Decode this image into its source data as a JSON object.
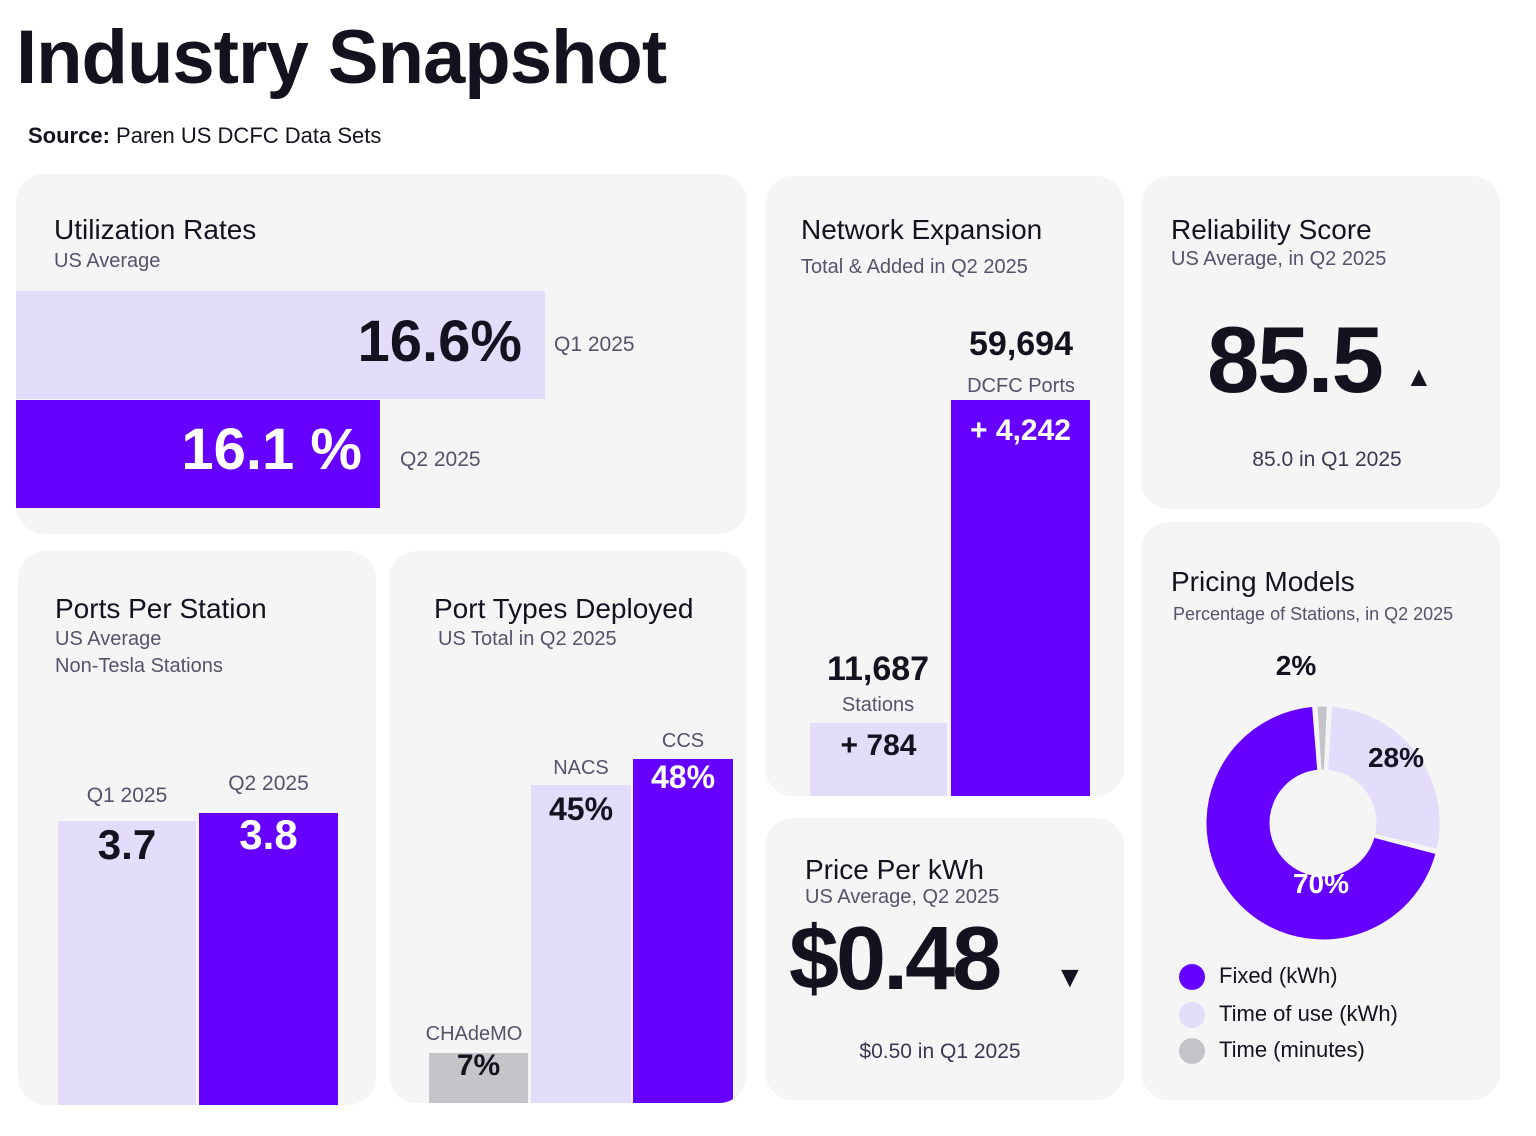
{
  "header": {
    "title": "Industry Snapshot",
    "source_label": "Source:",
    "source_text": "Paren US DCFC Data Sets"
  },
  "colors": {
    "accent": "#6600ff",
    "light": "#e4dcfb",
    "gray": "#c5c5c9",
    "card_bg": "#f5f5f6",
    "text": "#14121f"
  },
  "utilization": {
    "title": "Utilization Rates",
    "subtitle": "US Average",
    "q1_value": "16.6%",
    "q1_label": "Q1 2025",
    "q2_value": "16.1 %",
    "q2_label": "Q2 2025"
  },
  "network": {
    "title": "Network Expansion",
    "subtitle": "Total & Added in Q2 2025",
    "ports_total": "59,694",
    "ports_label": "DCFC Ports",
    "ports_added": "+ 4,242",
    "stations_total": "11,687",
    "stations_label": "Stations",
    "stations_added": "+ 784"
  },
  "reliability": {
    "title": "Reliability Score",
    "subtitle": "US Average, in Q2 2025",
    "value": "85.5",
    "trend_icon": "up-triangle",
    "trend_glyph": "▲",
    "previous": "85.0 in Q1 2025"
  },
  "ports_per_station": {
    "title": "Ports Per Station",
    "subtitle1": "US Average",
    "subtitle2": "Non-Tesla Stations",
    "q1_label": "Q1 2025",
    "q1_value": "3.7",
    "q2_label": "Q2 2025",
    "q2_value": "3.8"
  },
  "port_types": {
    "title": "Port Types Deployed",
    "subtitle": "US Total in Q2 2025",
    "chademo_label": "CHAdeMO",
    "chademo_value": "7%",
    "nacs_label": "NACS",
    "nacs_value": "45%",
    "ccs_label": "CCS",
    "ccs_value": "48%"
  },
  "price": {
    "title": "Price Per kWh",
    "subtitle": "US Average, Q2 2025",
    "value": "$0.48",
    "trend_icon": "down-triangle",
    "trend_glyph": "▼",
    "previous": "$0.50 in Q1 2025"
  },
  "pricing": {
    "title": "Pricing Models",
    "subtitle": "Percentage of Stations, in Q2 2025",
    "slice_time_label": "2%",
    "slice_tou_label": "28%",
    "slice_fixed_label": "70%",
    "legend_fixed": "Fixed (kWh)",
    "legend_tou": "Time of use (kWh)",
    "legend_time": "Time (minutes)"
  },
  "chart_data": [
    {
      "type": "bar",
      "title": "Utilization Rates",
      "subtitle": "US Average",
      "categories": [
        "Q1 2025",
        "Q2 2025"
      ],
      "values": [
        16.6,
        16.1
      ],
      "unit": "%"
    },
    {
      "type": "bar",
      "title": "Network Expansion",
      "subtitle": "Total & Added in Q2 2025",
      "categories": [
        "Stations",
        "DCFC Ports"
      ],
      "values": [
        11687,
        59694
      ],
      "added": [
        784,
        4242
      ]
    },
    {
      "type": "bar",
      "title": "Ports Per Station",
      "subtitle": "US Average Non-Tesla Stations",
      "categories": [
        "Q1 2025",
        "Q2 2025"
      ],
      "values": [
        3.7,
        3.8
      ]
    },
    {
      "type": "bar",
      "title": "Port Types Deployed",
      "subtitle": "US Total in Q2 2025",
      "categories": [
        "CHAdeMO",
        "NACS",
        "CCS"
      ],
      "values": [
        7,
        45,
        48
      ],
      "unit": "%"
    },
    {
      "type": "pie",
      "title": "Pricing Models",
      "subtitle": "Percentage of Stations, in Q2 2025",
      "categories": [
        "Fixed (kWh)",
        "Time of use (kWh)",
        "Time (minutes)"
      ],
      "values": [
        70,
        28,
        2
      ],
      "unit": "%"
    }
  ]
}
